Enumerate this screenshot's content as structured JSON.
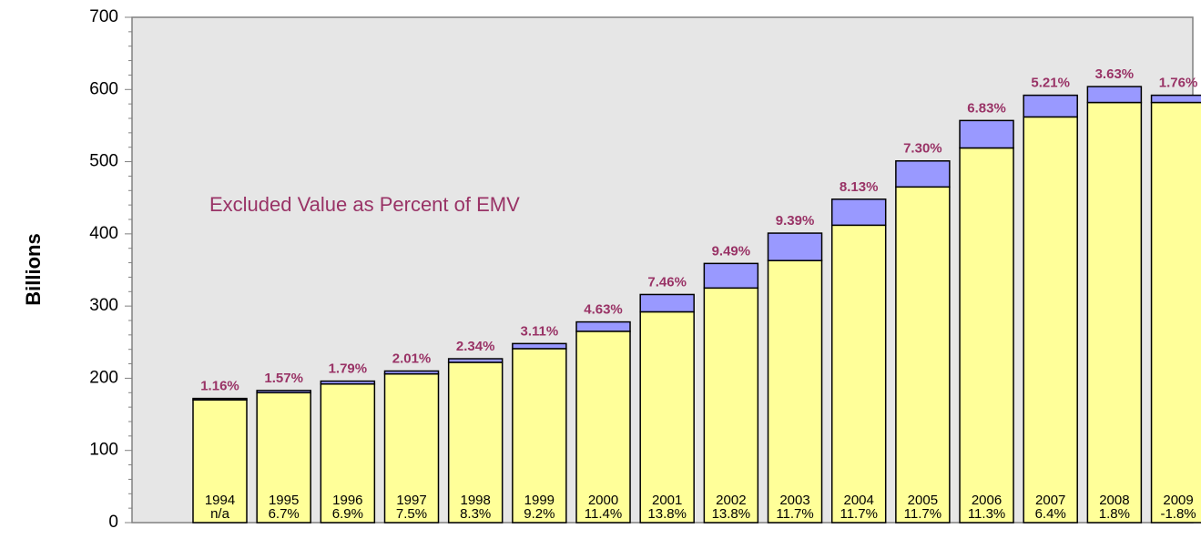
{
  "chart_data": {
    "type": "stacked_bar",
    "ylabel": "Billions",
    "annotation": "Excluded Value as Percent of EMV",
    "categories": [
      "1994",
      "1995",
      "1996",
      "1997",
      "1998",
      "1999",
      "2000",
      "2001",
      "2002",
      "2003",
      "2004",
      "2005",
      "2006",
      "2007",
      "2008",
      "2009"
    ],
    "growth_labels": [
      "n/a",
      "6.7%",
      "6.9%",
      "7.5%",
      "8.3%",
      "9.2%",
      "11.4%",
      "13.8%",
      "13.8%",
      "11.7%",
      "11.7%",
      "11.7%",
      "11.3%",
      "6.4%",
      "1.8%",
      "-1.8%"
    ],
    "top_labels": [
      "1.16%",
      "1.57%",
      "1.79%",
      "2.01%",
      "2.34%",
      "3.11%",
      "4.63%",
      "7.46%",
      "9.49%",
      "9.39%",
      "8.13%",
      "7.30%",
      "6.83%",
      "5.21%",
      "3.63%",
      "1.76%"
    ],
    "series": [
      {
        "color": "#ffff99",
        "values": [
          170,
          180,
          192,
          206,
          222,
          241,
          265,
          292,
          325,
          363,
          412,
          465,
          519,
          562,
          582,
          582
        ]
      },
      {
        "color": "#9999ff",
        "values": [
          2,
          3,
          4,
          4,
          5,
          7,
          13,
          24,
          34,
          38,
          36,
          36,
          38,
          30,
          22,
          10
        ]
      }
    ],
    "ylim": [
      0,
      700
    ],
    "yticks": [
      0,
      100,
      200,
      300,
      400,
      500,
      600,
      700
    ]
  }
}
